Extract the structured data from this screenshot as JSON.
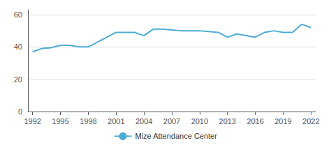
{
  "chart_data": {
    "type": "line",
    "x": [
      1992,
      1993,
      1994,
      1995,
      1996,
      1997,
      1998,
      1999,
      2000,
      2001,
      2002,
      2003,
      2004,
      2005,
      2006,
      2007,
      2008,
      2009,
      2010,
      2011,
      2012,
      2013,
      2014,
      2015,
      2016,
      2017,
      2018,
      2019,
      2020,
      2021,
      2022
    ],
    "series": [
      {
        "name": "Mize Attendance Center",
        "color": "#4DACD4",
        "values": [
          37,
          39,
          39.5,
          41,
          41,
          40,
          40,
          43,
          46,
          49,
          49,
          49,
          47,
          51,
          51,
          50.5,
          50,
          50,
          50,
          49.5,
          49,
          46,
          48,
          47,
          46,
          49,
          50,
          49,
          49,
          54,
          52
        ]
      }
    ],
    "xlim": [
      1991.5,
      2022.5
    ],
    "xticks": [
      1992,
      1995,
      1998,
      2001,
      2004,
      2007,
      2010,
      2013,
      2016,
      2019,
      2022
    ],
    "ylim": [
      0,
      63
    ],
    "yticks": [
      0,
      20,
      40,
      60
    ],
    "grid": true,
    "legend": "bottom"
  }
}
